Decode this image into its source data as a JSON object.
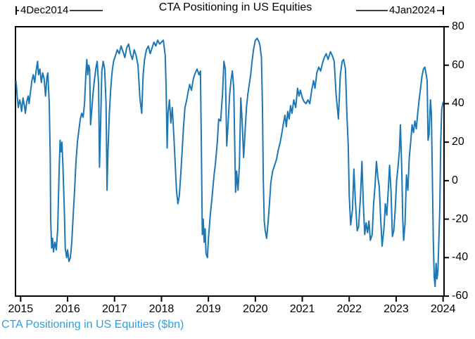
{
  "title": "CTA Positioning in US Equities",
  "caption": "CTA Positioning in US Equities ($bn)",
  "annotations": {
    "start_label": "4Dec2014",
    "end_label": "4Jan2024"
  },
  "colors": {
    "line": "#1b78b5",
    "caption": "#2e9fdb",
    "axis": "#000000"
  },
  "chart_data": {
    "type": "line",
    "title": "CTA Positioning in US Equities",
    "series_name": "CTA Positioning in US Equities ($bn)",
    "legend_position": "bottom-left",
    "grid": false,
    "y_axis_side": "right",
    "xlim": [
      2014.89,
      2024.02
    ],
    "ylim": [
      -60,
      80
    ],
    "x_ticks": [
      2015,
      2016,
      2017,
      2018,
      2019,
      2020,
      2021,
      2022,
      2023,
      2024
    ],
    "y_ticks": [
      80,
      60,
      40,
      20,
      0,
      -20,
      -40,
      -60
    ],
    "data_start": "4Dec2014",
    "data_end": "4Jan2024",
    "points": [
      [
        2014.9,
        52
      ],
      [
        2014.93,
        43
      ],
      [
        2014.95,
        38
      ],
      [
        2014.98,
        42
      ],
      [
        2015.0,
        40
      ],
      [
        2015.02,
        36
      ],
      [
        2015.05,
        43
      ],
      [
        2015.08,
        39
      ],
      [
        2015.1,
        35
      ],
      [
        2015.13,
        41
      ],
      [
        2015.16,
        44
      ],
      [
        2015.18,
        40
      ],
      [
        2015.21,
        46
      ],
      [
        2015.24,
        52
      ],
      [
        2015.27,
        55
      ],
      [
        2015.3,
        51
      ],
      [
        2015.33,
        57
      ],
      [
        2015.36,
        62
      ],
      [
        2015.38,
        55
      ],
      [
        2015.41,
        58
      ],
      [
        2015.44,
        51
      ],
      [
        2015.47,
        56
      ],
      [
        2015.5,
        53
      ],
      [
        2015.53,
        44
      ],
      [
        2015.56,
        54
      ],
      [
        2015.58,
        56
      ],
      [
        2015.61,
        40
      ],
      [
        2015.63,
        12
      ],
      [
        2015.64,
        -20
      ],
      [
        2015.66,
        -35
      ],
      [
        2015.68,
        -30
      ],
      [
        2015.7,
        -37
      ],
      [
        2015.73,
        -32
      ],
      [
        2015.76,
        -36
      ],
      [
        2015.79,
        -25
      ],
      [
        2015.82,
        5
      ],
      [
        2015.84,
        21
      ],
      [
        2015.86,
        15
      ],
      [
        2015.88,
        20
      ],
      [
        2015.9,
        8
      ],
      [
        2015.93,
        -15
      ],
      [
        2015.95,
        -35
      ],
      [
        2015.98,
        -40
      ],
      [
        2016.0,
        -36
      ],
      [
        2016.03,
        -42
      ],
      [
        2016.06,
        -40
      ],
      [
        2016.09,
        -32
      ],
      [
        2016.12,
        -18
      ],
      [
        2016.15,
        -5
      ],
      [
        2016.18,
        10
      ],
      [
        2016.21,
        20
      ],
      [
        2016.24,
        26
      ],
      [
        2016.27,
        32
      ],
      [
        2016.3,
        35
      ],
      [
        2016.33,
        33
      ],
      [
        2016.36,
        40
      ],
      [
        2016.39,
        56
      ],
      [
        2016.41,
        63
      ],
      [
        2016.43,
        55
      ],
      [
        2016.45,
        60
      ],
      [
        2016.47,
        58
      ],
      [
        2016.49,
        29
      ],
      [
        2016.52,
        38
      ],
      [
        2016.54,
        45
      ],
      [
        2016.57,
        52
      ],
      [
        2016.6,
        58
      ],
      [
        2016.63,
        62
      ],
      [
        2016.66,
        50
      ],
      [
        2016.68,
        7
      ],
      [
        2016.7,
        25
      ],
      [
        2016.73,
        57
      ],
      [
        2016.76,
        62
      ],
      [
        2016.79,
        58
      ],
      [
        2016.82,
        40
      ],
      [
        2016.84,
        -5
      ],
      [
        2016.86,
        15
      ],
      [
        2016.89,
        35
      ],
      [
        2016.92,
        48
      ],
      [
        2016.95,
        57
      ],
      [
        2016.98,
        62
      ],
      [
        2017.02,
        65
      ],
      [
        2017.06,
        68
      ],
      [
        2017.1,
        66
      ],
      [
        2017.14,
        70
      ],
      [
        2017.18,
        67
      ],
      [
        2017.22,
        64
      ],
      [
        2017.26,
        69
      ],
      [
        2017.3,
        71
      ],
      [
        2017.34,
        66
      ],
      [
        2017.38,
        63
      ],
      [
        2017.42,
        68
      ],
      [
        2017.46,
        65
      ],
      [
        2017.5,
        60
      ],
      [
        2017.54,
        43
      ],
      [
        2017.58,
        35
      ],
      [
        2017.61,
        55
      ],
      [
        2017.64,
        63
      ],
      [
        2017.68,
        68
      ],
      [
        2017.72,
        70
      ],
      [
        2017.76,
        66
      ],
      [
        2017.8,
        69
      ],
      [
        2017.84,
        72
      ],
      [
        2017.88,
        70
      ],
      [
        2017.92,
        73
      ],
      [
        2017.96,
        71
      ],
      [
        2018.0,
        72
      ],
      [
        2018.04,
        73
      ],
      [
        2018.08,
        65
      ],
      [
        2018.1,
        48
      ],
      [
        2018.12,
        17
      ],
      [
        2018.14,
        35
      ],
      [
        2018.17,
        42
      ],
      [
        2018.2,
        30
      ],
      [
        2018.23,
        38
      ],
      [
        2018.26,
        25
      ],
      [
        2018.29,
        10
      ],
      [
        2018.32,
        -5
      ],
      [
        2018.35,
        -12
      ],
      [
        2018.38,
        -8
      ],
      [
        2018.41,
        3
      ],
      [
        2018.44,
        15
      ],
      [
        2018.47,
        28
      ],
      [
        2018.5,
        38
      ],
      [
        2018.53,
        41
      ],
      [
        2018.56,
        45
      ],
      [
        2018.6,
        50
      ],
      [
        2018.64,
        47
      ],
      [
        2018.68,
        53
      ],
      [
        2018.72,
        56
      ],
      [
        2018.76,
        58
      ],
      [
        2018.8,
        55
      ],
      [
        2018.83,
        57
      ],
      [
        2018.85,
        20
      ],
      [
        2018.87,
        -28
      ],
      [
        2018.89,
        -20
      ],
      [
        2018.91,
        -32
      ],
      [
        2018.93,
        -25
      ],
      [
        2018.95,
        -38
      ],
      [
        2018.98,
        -40
      ],
      [
        2019.0,
        -30
      ],
      [
        2019.04,
        -18
      ],
      [
        2019.08,
        -8
      ],
      [
        2019.12,
        3
      ],
      [
        2019.15,
        9
      ],
      [
        2019.19,
        20
      ],
      [
        2019.22,
        32
      ],
      [
        2019.26,
        31
      ],
      [
        2019.3,
        45
      ],
      [
        2019.33,
        62
      ],
      [
        2019.36,
        58
      ],
      [
        2019.39,
        18
      ],
      [
        2019.42,
        30
      ],
      [
        2019.45,
        44
      ],
      [
        2019.48,
        52
      ],
      [
        2019.51,
        57
      ],
      [
        2019.54,
        48
      ],
      [
        2019.56,
        20
      ],
      [
        2019.58,
        -6
      ],
      [
        2019.6,
        5
      ],
      [
        2019.63,
        -5
      ],
      [
        2019.66,
        8
      ],
      [
        2019.69,
        43
      ],
      [
        2019.72,
        30
      ],
      [
        2019.75,
        12
      ],
      [
        2019.78,
        25
      ],
      [
        2019.81,
        38
      ],
      [
        2019.84,
        45
      ],
      [
        2019.87,
        50
      ],
      [
        2019.9,
        55
      ],
      [
        2019.93,
        62
      ],
      [
        2019.96,
        68
      ],
      [
        2020.0,
        73
      ],
      [
        2020.04,
        74
      ],
      [
        2020.08,
        72
      ],
      [
        2020.1,
        70
      ],
      [
        2020.13,
        64
      ],
      [
        2020.15,
        40
      ],
      [
        2020.17,
        0
      ],
      [
        2020.19,
        -21
      ],
      [
        2020.21,
        -26
      ],
      [
        2020.24,
        -30
      ],
      [
        2020.27,
        -22
      ],
      [
        2020.3,
        -12
      ],
      [
        2020.33,
        -1
      ],
      [
        2020.37,
        5
      ],
      [
        2020.41,
        8
      ],
      [
        2020.45,
        11
      ],
      [
        2020.49,
        16
      ],
      [
        2020.53,
        20
      ],
      [
        2020.56,
        24
      ],
      [
        2020.6,
        30
      ],
      [
        2020.63,
        34
      ],
      [
        2020.66,
        28
      ],
      [
        2020.69,
        36
      ],
      [
        2020.72,
        32
      ],
      [
        2020.75,
        39
      ],
      [
        2020.78,
        35
      ],
      [
        2020.82,
        42
      ],
      [
        2020.86,
        38
      ],
      [
        2020.9,
        48
      ],
      [
        2020.93,
        44
      ],
      [
        2020.96,
        47
      ],
      [
        2021.0,
        43
      ],
      [
        2021.04,
        41
      ],
      [
        2021.08,
        40
      ],
      [
        2021.12,
        42
      ],
      [
        2021.16,
        40
      ],
      [
        2021.2,
        47
      ],
      [
        2021.24,
        52
      ],
      [
        2021.27,
        48
      ],
      [
        2021.31,
        56
      ],
      [
        2021.35,
        59
      ],
      [
        2021.39,
        57
      ],
      [
        2021.43,
        61
      ],
      [
        2021.47,
        64
      ],
      [
        2021.51,
        66
      ],
      [
        2021.55,
        63
      ],
      [
        2021.6,
        67
      ],
      [
        2021.64,
        65
      ],
      [
        2021.68,
        62
      ],
      [
        2021.72,
        45
      ],
      [
        2021.77,
        32
      ],
      [
        2021.81,
        55
      ],
      [
        2021.85,
        62
      ],
      [
        2021.88,
        63
      ],
      [
        2021.92,
        58
      ],
      [
        2021.95,
        35
      ],
      [
        2021.98,
        18
      ],
      [
        2022.0,
        -8
      ],
      [
        2022.03,
        -23
      ],
      [
        2022.07,
        -15
      ],
      [
        2022.1,
        6
      ],
      [
        2022.13,
        -10
      ],
      [
        2022.17,
        -26
      ],
      [
        2022.2,
        -24
      ],
      [
        2022.24,
        -8
      ],
      [
        2022.27,
        10
      ],
      [
        2022.3,
        -12
      ],
      [
        2022.33,
        -28
      ],
      [
        2022.36,
        -22
      ],
      [
        2022.39,
        -27
      ],
      [
        2022.42,
        -21
      ],
      [
        2022.45,
        -31
      ],
      [
        2022.49,
        -28
      ],
      [
        2022.52,
        -12
      ],
      [
        2022.55,
        -3
      ],
      [
        2022.58,
        10
      ],
      [
        2022.61,
        2
      ],
      [
        2022.64,
        -3
      ],
      [
        2022.67,
        -20
      ],
      [
        2022.7,
        -34
      ],
      [
        2022.74,
        -25
      ],
      [
        2022.77,
        -12
      ],
      [
        2022.8,
        -18
      ],
      [
        2022.83,
        -6
      ],
      [
        2022.86,
        8
      ],
      [
        2022.89,
        -5
      ],
      [
        2022.92,
        -29
      ],
      [
        2022.95,
        -26
      ],
      [
        2022.98,
        -15
      ],
      [
        2023.01,
        0
      ],
      [
        2023.04,
        7
      ],
      [
        2023.07,
        16
      ],
      [
        2023.09,
        29
      ],
      [
        2023.12,
        5
      ],
      [
        2023.14,
        -20
      ],
      [
        2023.16,
        -31
      ],
      [
        2023.19,
        -22
      ],
      [
        2023.22,
        3
      ],
      [
        2023.25,
        -5
      ],
      [
        2023.28,
        12
      ],
      [
        2023.31,
        20
      ],
      [
        2023.34,
        29
      ],
      [
        2023.37,
        25
      ],
      [
        2023.4,
        31
      ],
      [
        2023.43,
        27
      ],
      [
        2023.46,
        35
      ],
      [
        2023.49,
        42
      ],
      [
        2023.52,
        48
      ],
      [
        2023.55,
        54
      ],
      [
        2023.58,
        58
      ],
      [
        2023.61,
        59
      ],
      [
        2023.64,
        55
      ],
      [
        2023.66,
        52
      ],
      [
        2023.68,
        21
      ],
      [
        2023.7,
        24
      ],
      [
        2023.73,
        42
      ],
      [
        2023.75,
        35
      ],
      [
        2023.77,
        5
      ],
      [
        2023.79,
        -30
      ],
      [
        2023.81,
        -50
      ],
      [
        2023.83,
        -55
      ],
      [
        2023.85,
        -43
      ],
      [
        2023.87,
        -51
      ],
      [
        2023.89,
        -47
      ],
      [
        2023.91,
        -30
      ],
      [
        2023.93,
        -14
      ],
      [
        2023.95,
        20
      ],
      [
        2023.97,
        37
      ],
      [
        2024.0,
        41
      ]
    ]
  }
}
